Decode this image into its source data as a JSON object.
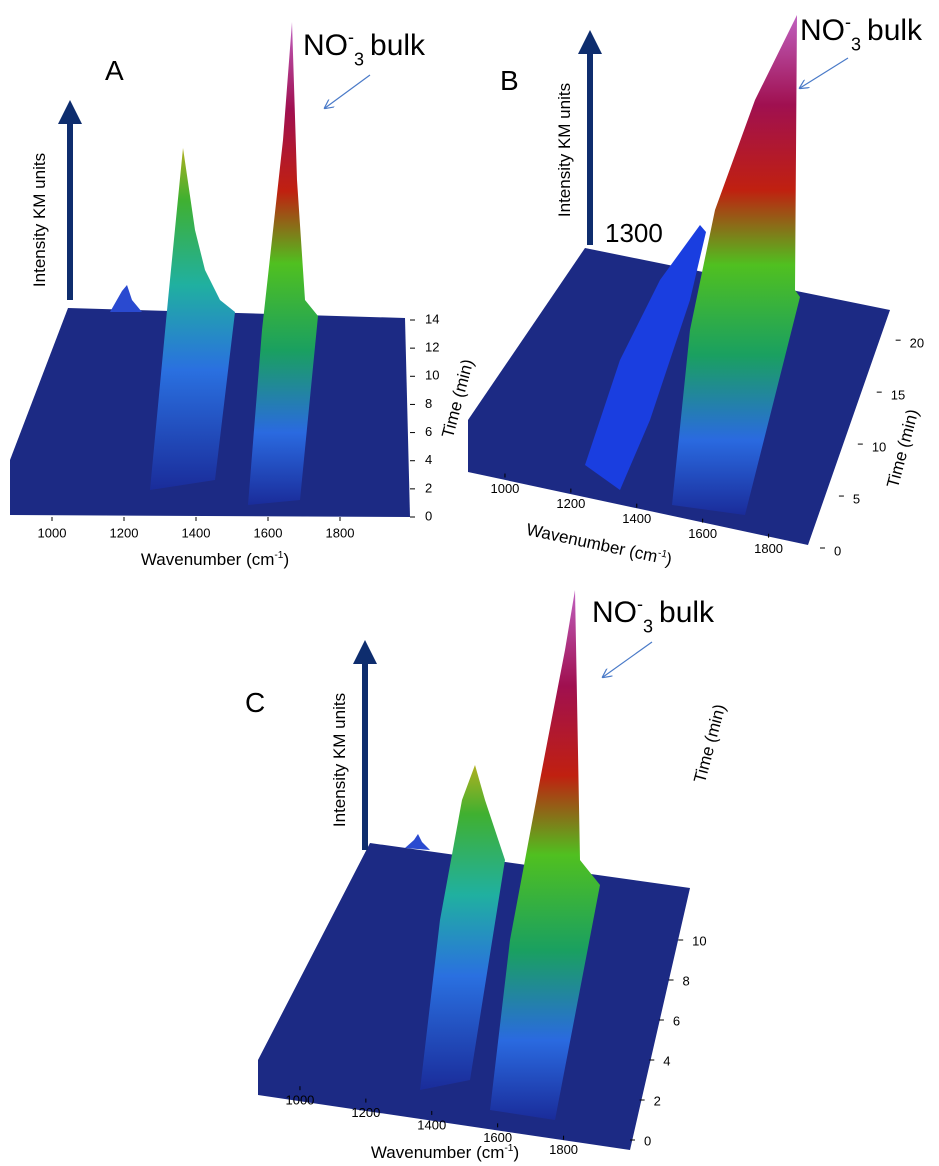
{
  "chart_data": [
    {
      "type": "surface3d",
      "label": "A",
      "annotation": {
        "base": "NO",
        "sup": "-",
        "sub": "3",
        "rest": "bulk"
      },
      "z_axis_title": "Intensity KM units",
      "x_axis_title": {
        "base": "Wavenumber (cm",
        "sup": "-1",
        "rest": ")"
      },
      "xlim": [
        900,
        1950
      ],
      "xticks": [
        1000,
        1200,
        1400,
        1600,
        1800
      ],
      "ylim": [
        0,
        14
      ],
      "yticks": [
        0,
        2,
        4,
        6,
        8,
        10,
        12,
        14
      ]
    },
    {
      "type": "surface3d",
      "label": "B",
      "annotation": {
        "base": "NO",
        "sup": "-",
        "sub": "3",
        "rest": "bulk"
      },
      "z_axis_title": "Intensity KM units",
      "peak_label": "1300",
      "x_axis_title": {
        "base": "Wavenumber (cm",
        "sup": "-1",
        "rest": ")"
      },
      "y_axis_titles": [
        "Time (min)",
        "Time (min)"
      ],
      "xlim": [
        900,
        1950
      ],
      "xticks": [
        1000,
        1200,
        1400,
        1600,
        1800
      ],
      "ylim": [
        0,
        23
      ],
      "yticks": [
        0,
        5,
        10,
        15,
        20
      ]
    },
    {
      "type": "surface3d",
      "label": "C",
      "annotation": {
        "base": "NO",
        "sup": "-",
        "sub": "3",
        "rest": "bulk"
      },
      "z_axis_title": "Intensity KM units",
      "x_axis_title": {
        "base": "Wavenumber (cm",
        "sup": "-1",
        "rest": ")"
      },
      "y_axis_title": "Time (min)",
      "xlim": [
        900,
        1950
      ],
      "xticks": [
        1000,
        1200,
        1400,
        1600,
        1800
      ],
      "ylim": [
        0,
        11
      ],
      "yticks": [
        0,
        2,
        4,
        6,
        8,
        10
      ]
    }
  ]
}
